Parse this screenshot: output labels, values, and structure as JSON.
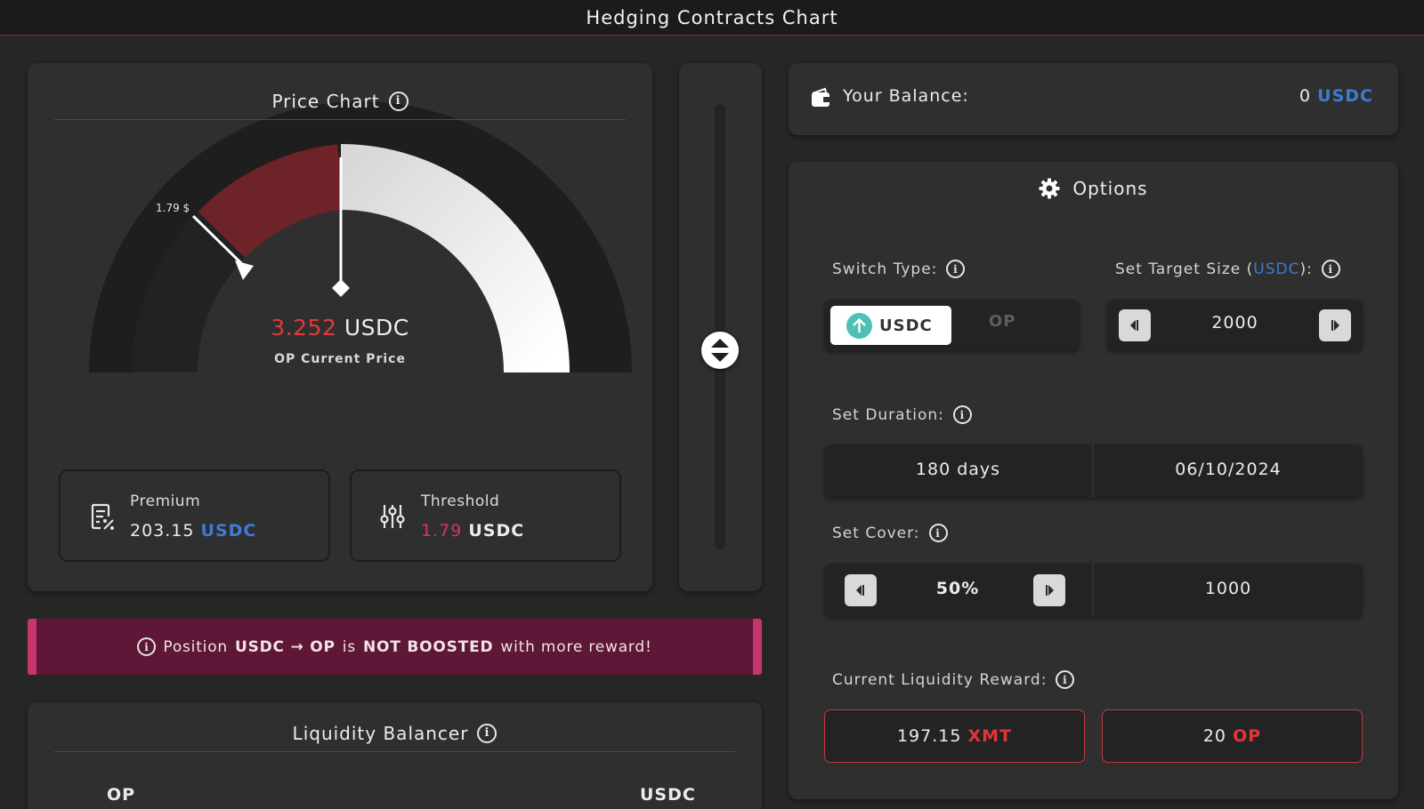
{
  "header": {
    "title": "Hedging Contracts Chart"
  },
  "price_chart": {
    "title": "Price Chart",
    "threshold_marker_label": "1.79 $",
    "current_price": "3.252",
    "current_unit": "USDC",
    "current_caption": "OP Current Price",
    "premium": {
      "label": "Premium",
      "value": "203.15",
      "unit": "USDC",
      "icon": "receipt-percent-icon"
    },
    "threshold": {
      "label": "Threshold",
      "value": "1.79",
      "unit": "USDC",
      "icon": "sliders-icon"
    }
  },
  "notice": {
    "prefix": "Position",
    "pair": "USDC → OP",
    "middle": "is",
    "status": "NOT BOOSTED",
    "suffix": "with more reward!"
  },
  "liquidity_balancer": {
    "title": "Liquidity Balancer",
    "left_token": "OP",
    "right_token": "USDC"
  },
  "balance": {
    "label": "Your Balance:",
    "amount": "0",
    "unit": "USDC",
    "icon": "wallet-icon"
  },
  "options": {
    "title": "Options",
    "switch_type": {
      "label": "Switch Type:",
      "selected": "USDC",
      "other": "OP"
    },
    "target_size": {
      "label_prefix": "Set Target Size (",
      "label_unit": "USDC",
      "label_suffix": "):",
      "value": "2000"
    },
    "duration": {
      "label": "Set Duration:",
      "days": "180 days",
      "date": "06/10/2024"
    },
    "cover": {
      "label": "Set Cover:",
      "percent": "50%",
      "amount": "1000"
    },
    "reward": {
      "label": "Current Liquidity Reward:",
      "xmt_value": "197.15",
      "xmt_unit": "XMT",
      "op_value": "20",
      "op_unit": "OP"
    }
  },
  "colors": {
    "accent_blue": "#3d7bd6",
    "accent_red": "#e03a3a",
    "accent_pink": "#d6336c",
    "gauge_red": "#6e2328",
    "notice_bg": "#5e1736",
    "toggle_teal": "#4ec0b5"
  }
}
